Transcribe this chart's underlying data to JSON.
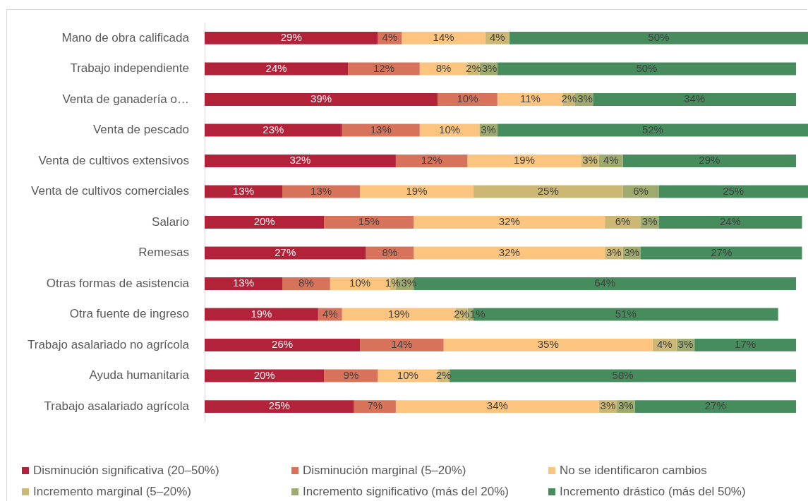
{
  "chart_data": {
    "type": "bar",
    "orientation": "horizontal",
    "stacked": true,
    "legend": "bottom",
    "tick_labels": "y",
    "categories": [
      "Mano de obra calificada",
      "Trabajo independiente",
      "Venta de ganadería o…",
      "Venta de pescado",
      "Venta de cultivos extensivos",
      "Venta de cultivos comerciales",
      "Salario",
      "Remesas",
      "Otras formas de asistencia",
      "Otra fuente de ingreso",
      "Trabajo asalariado no agrícola",
      "Ayuda humanitaria",
      "Trabajo asalariado agrícola"
    ],
    "series": [
      {
        "name": "Disminución significativa (20–50%)",
        "color": "#b22238",
        "values": [
          29,
          24,
          39,
          23,
          32,
          13,
          20,
          27,
          13,
          19,
          26,
          20,
          25
        ],
        "value_labels": [
          "29%",
          "24%",
          "39%",
          "23%",
          "32%",
          "13%",
          "20%",
          "27%",
          "13%",
          "19%",
          "26%",
          "20%",
          "25%"
        ]
      },
      {
        "name": "Disminución marginal (5–20%)",
        "color": "#d8735b",
        "values": [
          4,
          12,
          10,
          13,
          12,
          13,
          15,
          8,
          8,
          4,
          14,
          9,
          7
        ],
        "value_labels": [
          "4%",
          "12%",
          "10%",
          "13%",
          "12%",
          "13%",
          "15%",
          "8%",
          "8%",
          "4%",
          "14%",
          "9%",
          "7%"
        ]
      },
      {
        "name": "No se identificaron cambios",
        "color": "#fbc47f",
        "values": [
          14,
          8,
          11,
          10,
          19,
          19,
          32,
          32,
          10,
          19,
          35,
          10,
          34
        ],
        "value_labels": [
          "14%",
          "8%",
          "11%",
          "10%",
          "19%",
          "19%",
          "32%",
          "32%",
          "10%",
          "19%",
          "35%",
          "10%",
          "34%"
        ]
      },
      {
        "name": "Incremento marginal (5–20%)",
        "color": "#ccb874",
        "values": [
          4,
          2,
          2,
          null,
          3,
          25,
          6,
          3,
          1,
          2,
          4,
          2,
          3
        ],
        "value_labels": [
          "4%",
          "2%",
          "2%",
          null,
          "3%",
          "25%",
          "6%",
          "3%",
          "1%",
          "2%",
          "4%",
          "2%",
          "3%"
        ]
      },
      {
        "name": "Incremento significativo (más del 20%)",
        "color": "#9eaa6e",
        "values": [
          null,
          3,
          3,
          3,
          4,
          6,
          3,
          3,
          3,
          1,
          3,
          null,
          3
        ],
        "value_labels": [
          null,
          "3%",
          "3%",
          "3%",
          "4%",
          "6%",
          "3%",
          "3%",
          "3%",
          "1%",
          "3%",
          null,
          "3%"
        ]
      },
      {
        "name": "Incremento drástico (más del 50%)",
        "color": "#468c5c",
        "values": [
          50,
          50,
          34,
          52,
          29,
          25,
          24,
          27,
          64,
          51,
          17,
          58,
          27
        ],
        "value_labels": [
          "50%",
          "50%",
          "34%",
          "52%",
          "29%",
          "25%",
          "24%",
          "27%",
          "64%",
          "51%",
          "17%",
          "58%",
          "27%"
        ]
      }
    ]
  }
}
